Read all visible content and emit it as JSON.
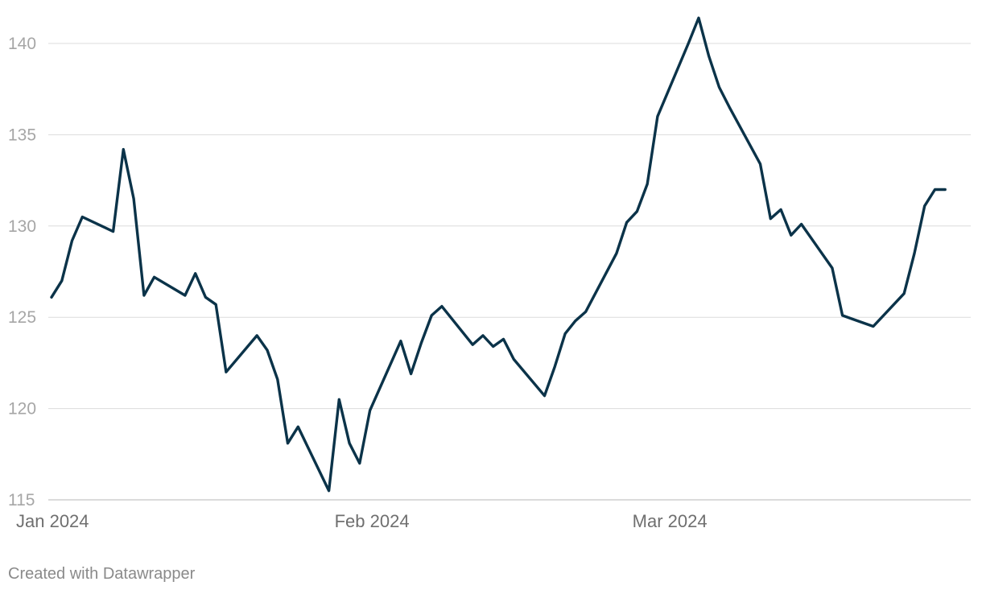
{
  "chart_data": {
    "type": "line",
    "title": "",
    "xlabel": "",
    "ylabel": "",
    "x_type": "date",
    "xlim": [
      "2024-01-01",
      "2024-03-29"
    ],
    "ylim": [
      115,
      141.5
    ],
    "y_ticks": [
      {
        "value": 140,
        "label": "140"
      },
      {
        "value": 135,
        "label": "135"
      },
      {
        "value": 130,
        "label": "130"
      },
      {
        "value": 125,
        "label": "125"
      },
      {
        "value": 120,
        "label": "120"
      },
      {
        "value": 115,
        "label": "115"
      }
    ],
    "x_ticks": [
      {
        "value": "2024-01-01",
        "label": "Jan 2024"
      },
      {
        "value": "2024-02-01",
        "label": "Feb 2024"
      },
      {
        "value": "2024-03-01",
        "label": "Mar 2024"
      }
    ],
    "grid": true,
    "legend": "none",
    "series": [
      {
        "color": "#0b3349",
        "x": [
          "2024-01-01",
          "2024-01-02",
          "2024-01-03",
          "2024-01-04",
          "2024-01-07",
          "2024-01-08",
          "2024-01-09",
          "2024-01-10",
          "2024-01-11",
          "2024-01-14",
          "2024-01-15",
          "2024-01-16",
          "2024-01-17",
          "2024-01-18",
          "2024-01-21",
          "2024-01-22",
          "2024-01-23",
          "2024-01-24",
          "2024-01-25",
          "2024-01-28",
          "2024-01-29",
          "2024-01-30",
          "2024-01-31",
          "2024-02-01",
          "2024-02-04",
          "2024-02-05",
          "2024-02-06",
          "2024-02-07",
          "2024-02-08",
          "2024-02-11",
          "2024-02-12",
          "2024-02-13",
          "2024-02-14",
          "2024-02-15",
          "2024-02-18",
          "2024-02-19",
          "2024-02-20",
          "2024-02-21",
          "2024-02-22",
          "2024-02-25",
          "2024-02-26",
          "2024-02-27",
          "2024-02-28",
          "2024-02-29",
          "2024-03-03",
          "2024-03-04",
          "2024-03-05",
          "2024-03-06",
          "2024-03-07",
          "2024-03-10",
          "2024-03-11",
          "2024-03-12",
          "2024-03-13",
          "2024-03-14",
          "2024-03-17",
          "2024-03-18",
          "2024-03-19",
          "2024-03-20",
          "2024-03-21",
          "2024-03-24",
          "2024-03-25",
          "2024-03-26",
          "2024-03-27",
          "2024-03-28"
        ],
        "y": [
          126.1,
          127.0,
          129.2,
          130.5,
          129.7,
          134.2,
          131.5,
          126.2,
          127.2,
          126.2,
          127.4,
          126.1,
          125.7,
          122.0,
          124.0,
          123.2,
          121.6,
          118.1,
          119.0,
          115.5,
          120.5,
          118.1,
          117.0,
          119.9,
          123.7,
          121.9,
          123.6,
          125.1,
          125.6,
          123.5,
          124.0,
          123.4,
          123.8,
          122.7,
          120.7,
          122.3,
          124.1,
          124.8,
          125.3,
          128.5,
          130.2,
          130.8,
          132.3,
          136.0,
          140.0,
          141.4,
          139.3,
          137.6,
          136.5,
          133.4,
          130.4,
          130.9,
          129.5,
          130.1,
          127.7,
          125.1,
          124.9,
          124.7,
          124.5,
          126.3,
          128.5,
          131.1,
          132.0,
          132.0
        ]
      }
    ]
  },
  "footer": {
    "credit": "Created with Datawrapper"
  }
}
